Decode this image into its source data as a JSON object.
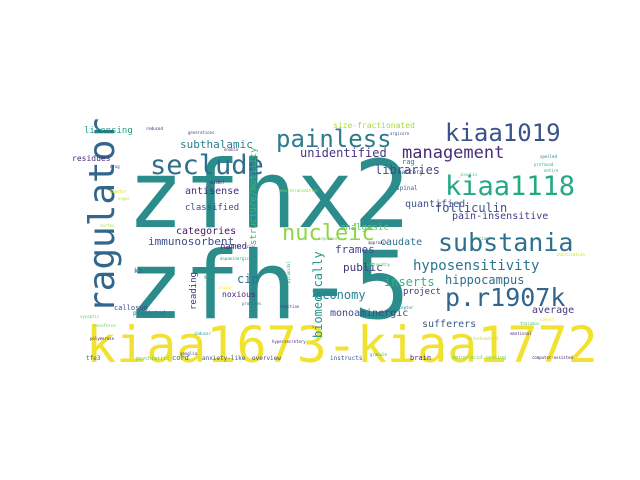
{
  "wordcloud": {
    "words": [
      {
        "text": "zfhx2",
        "color": "#2a8d8b"
      },
      {
        "text": "zfh-5",
        "color": "#2a8d8b"
      },
      {
        "text": "kiaa1673-kiaa1772",
        "color": "#f1e232"
      },
      {
        "text": "ragulator",
        "color": "#32668d"
      },
      {
        "text": "seclude",
        "color": "#2f6f8e"
      },
      {
        "text": "painless",
        "color": "#2c7c8d"
      },
      {
        "text": "kiaa1019",
        "color": "#3a538b"
      },
      {
        "text": "management",
        "color": "#472b76"
      },
      {
        "text": "kiaa1118",
        "color": "#24aa83"
      },
      {
        "text": "substania",
        "color": "#2c718e"
      },
      {
        "text": "nucleic",
        "color": "#8fd644"
      },
      {
        "text": "p.r1907k",
        "color": "#31658e"
      },
      {
        "text": "hyposensitivity",
        "color": "#2a768e"
      },
      {
        "text": "unidentified",
        "color": "#463480"
      },
      {
        "text": "libraries",
        "color": "#3d4d8a"
      },
      {
        "text": "folliculin",
        "color": "#3c508b"
      },
      {
        "text": "pain-insensitive",
        "color": "#433d84"
      },
      {
        "text": "inserts",
        "color": "#33b67a"
      },
      {
        "text": "hippocampus",
        "color": "#2e6e8e"
      },
      {
        "text": "economy",
        "color": "#26818e"
      },
      {
        "text": "frames",
        "color": "#3f4889"
      },
      {
        "text": "public",
        "color": "#46307e"
      },
      {
        "text": "subthalamic",
        "color": "#26818e"
      },
      {
        "text": "antisense",
        "color": "#472d7b"
      },
      {
        "text": "classified",
        "color": "#3e4a89"
      },
      {
        "text": "categories",
        "color": "#471365"
      },
      {
        "text": "immunosorbent",
        "color": "#3c4f8a"
      },
      {
        "text": "named",
        "color": "#472d7b"
      },
      {
        "text": "cip",
        "color": "#2b748e"
      },
      {
        "text": "reading",
        "color": "#46317e"
      },
      {
        "text": "noxious",
        "color": "#482475"
      },
      {
        "text": "structure/motility",
        "color": "#35b779"
      },
      {
        "text": "biomedically",
        "color": "#1f978b"
      },
      {
        "text": "caudate",
        "color": "#2d708e"
      },
      {
        "text": "analgesic",
        "color": "#5cc863"
      },
      {
        "text": "monoaminergic",
        "color": "#3e4989"
      },
      {
        "text": "project",
        "color": "#472e7c"
      },
      {
        "text": "sufferers",
        "color": "#375b8d"
      },
      {
        "text": "average",
        "color": "#453781"
      },
      {
        "text": "quantified",
        "color": "#3b528b"
      },
      {
        "text": "size-fractionated",
        "color": "#aadc32"
      },
      {
        "text": "licensing",
        "color": "#1fa187"
      },
      {
        "text": "residues",
        "color": "#472c7a"
      },
      {
        "text": "predicted",
        "color": "#2c728e"
      },
      {
        "text": "callosum",
        "color": "#3c4f8a"
      },
      {
        "text": "kb",
        "color": "#355f8d"
      },
      {
        "text": "cord",
        "color": "#2d708e"
      },
      {
        "text": "anxiety-like",
        "color": "#3a548c"
      },
      {
        "text": "overview",
        "color": "#414487"
      },
      {
        "text": "instructs",
        "color": "#38598c"
      },
      {
        "text": "brain",
        "color": "#481c6e"
      },
      {
        "text": "amino-acid-sensing",
        "color": "#77d153"
      },
      {
        "text": "battery",
        "color": "#404688"
      },
      {
        "text": "spinal",
        "color": "#34618d"
      },
      {
        "text": "rag",
        "color": "#2a788e"
      },
      {
        "text": "tfe3",
        "color": "#31688e"
      },
      {
        "text": "psychiatric",
        "color": "#5ec962"
      },
      {
        "text": "computer-assisted",
        "color": "#482071"
      },
      {
        "text": "mider",
        "color": "#472f7d"
      },
      {
        "text": "artificial",
        "color": "#3b528b"
      },
      {
        "text": "profiles",
        "color": "#2e6f8e"
      },
      {
        "text": "reaction",
        "color": "#443983"
      },
      {
        "text": "approach",
        "color": "#482878"
      },
      {
        "text": "emotional",
        "color": "#46327e"
      },
      {
        "text": "profound",
        "color": "#31b57b"
      },
      {
        "text": "entire",
        "color": "#2db27d"
      },
      {
        "text": "ganglia",
        "color": "#433e85"
      },
      {
        "text": "generations",
        "color": "#3f4788"
      },
      {
        "text": "reduced",
        "color": "#481a6c"
      },
      {
        "text": "argicore",
        "color": "#3d4e8a"
      },
      {
        "text": "enable",
        "color": "#46337f"
      },
      {
        "text": "spelled",
        "color": "#2a778e"
      },
      {
        "text": "drug",
        "color": "#414287"
      },
      {
        "text": "hypersecretory",
        "color": "#472a7a"
      },
      {
        "text": "granule",
        "color": "#27ad81"
      },
      {
        "text": "inducer",
        "color": "#1e9b8a"
      },
      {
        "text": "polymerase",
        "color": "#482273"
      },
      {
        "text": "sugar",
        "color": "#bddf26"
      },
      {
        "text": "reinforce",
        "color": "#5ec962"
      },
      {
        "text": "sequences",
        "color": "#6ece58"
      },
      {
        "text": "hamster",
        "color": "#d8e219"
      },
      {
        "text": "neurotransmitter",
        "color": "#86d549"
      },
      {
        "text": "thalamus",
        "color": "#52c569"
      },
      {
        "text": "insulin",
        "color": "#40bd72"
      },
      {
        "text": "pyramidal",
        "color": "#2fb47c"
      },
      {
        "text": "dopaminergic",
        "color": "#22a884"
      },
      {
        "text": "ocular",
        "color": "#fde725"
      },
      {
        "text": "mitochondrial",
        "color": "#b5de2b"
      },
      {
        "text": "neuropathy",
        "color": "#4ac16d"
      },
      {
        "text": "gaba",
        "color": "#1f9e89"
      },
      {
        "text": "receptor",
        "color": "#21918c"
      },
      {
        "text": "cortex",
        "color": "#9bd93c"
      },
      {
        "text": "inactivation",
        "color": "#c8e020"
      },
      {
        "text": "synaptic",
        "color": "#65cb5e"
      },
      {
        "text": "variant",
        "color": "#25ac82"
      },
      {
        "text": "cohort",
        "color": "#f1e51d"
      }
    ]
  }
}
